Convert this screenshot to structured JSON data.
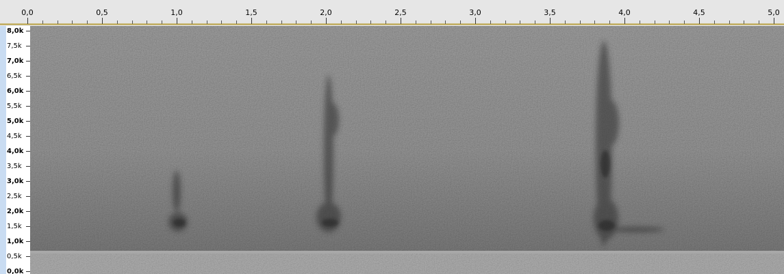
{
  "time_ruler": {
    "ticks": [
      "0,0",
      "0,5",
      "1,0",
      "1,5",
      "2,0",
      "2,5",
      "3,0",
      "3,5",
      "4,0",
      "4,5",
      "5,0"
    ]
  },
  "frequency_axis": {
    "ticks": [
      "8,0k",
      "7,5k",
      "7,0k",
      "6,5k",
      "6,0k",
      "5,5k",
      "5,0k",
      "4,5k",
      "4,0k",
      "3,5k",
      "3,0k",
      "2,5k",
      "2,0k",
      "1,5k",
      "1,0k",
      "0,5k",
      "0,0k"
    ]
  }
}
